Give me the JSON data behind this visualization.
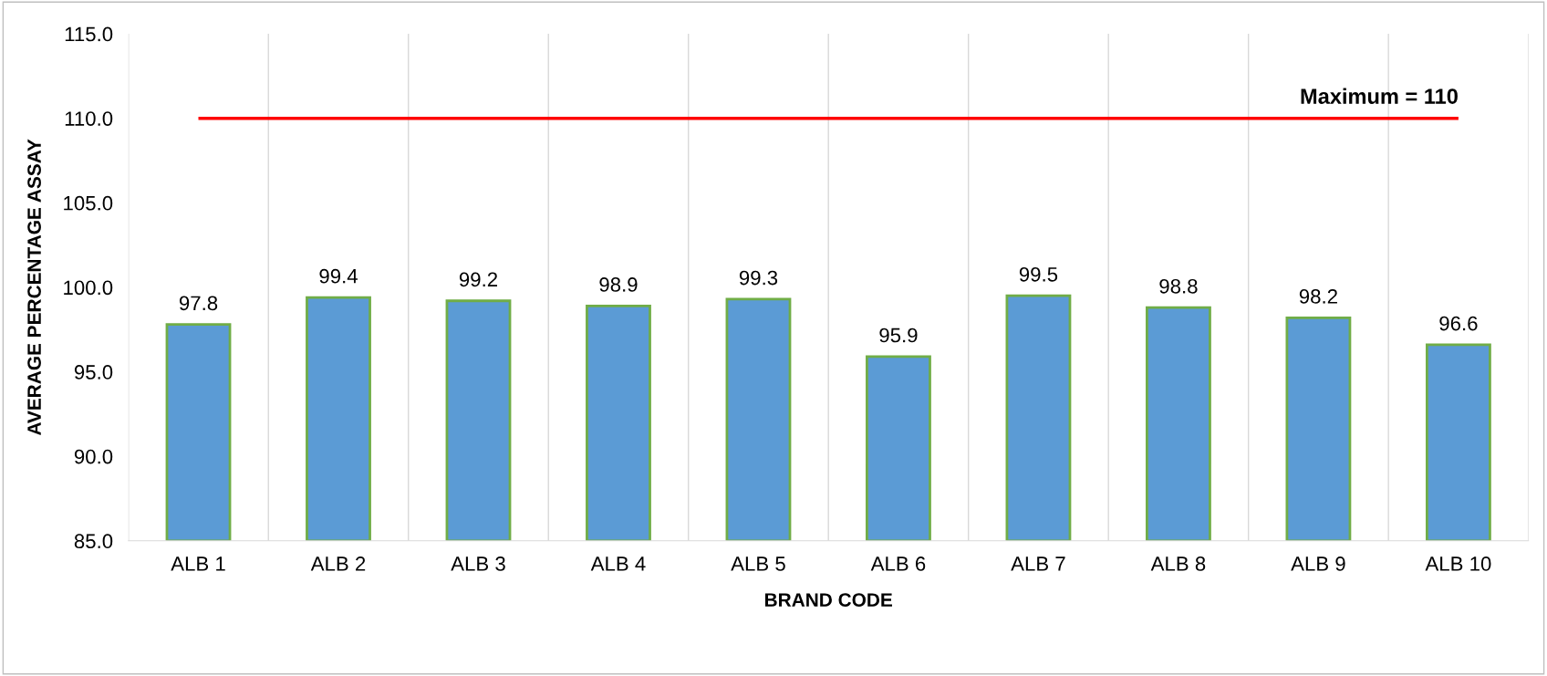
{
  "chart_data": {
    "type": "bar",
    "xlabel": "BRAND CODE",
    "ylabel": "AVERAGE PERCENTAGE ASSAY",
    "categories": [
      "ALB 1",
      "ALB 2",
      "ALB 3",
      "ALB 4",
      "ALB 5",
      "ALB 6",
      "ALB 7",
      "ALB 8",
      "ALB 9",
      "ALB 10"
    ],
    "values": [
      97.8,
      99.4,
      99.2,
      98.9,
      99.3,
      95.9,
      99.5,
      98.8,
      98.2,
      96.6
    ],
    "color": "#5b9bd5",
    "data_labels": true,
    "ylim": [
      85,
      115
    ],
    "yticks": [
      {
        "value": 85,
        "label": "85.0"
      },
      {
        "value": 90,
        "label": "90.0"
      },
      {
        "value": 95,
        "label": "95.0"
      },
      {
        "value": 100,
        "label": "100.0"
      },
      {
        "value": 105,
        "label": "105.0"
      },
      {
        "value": 110,
        "label": "110.0"
      },
      {
        "value": 115,
        "label": "115.0"
      }
    ],
    "ref_lines": [
      {
        "axis": "y",
        "value": 110,
        "label": "Maximum = 110",
        "color": "#ff0000"
      }
    ],
    "grid": "x"
  }
}
